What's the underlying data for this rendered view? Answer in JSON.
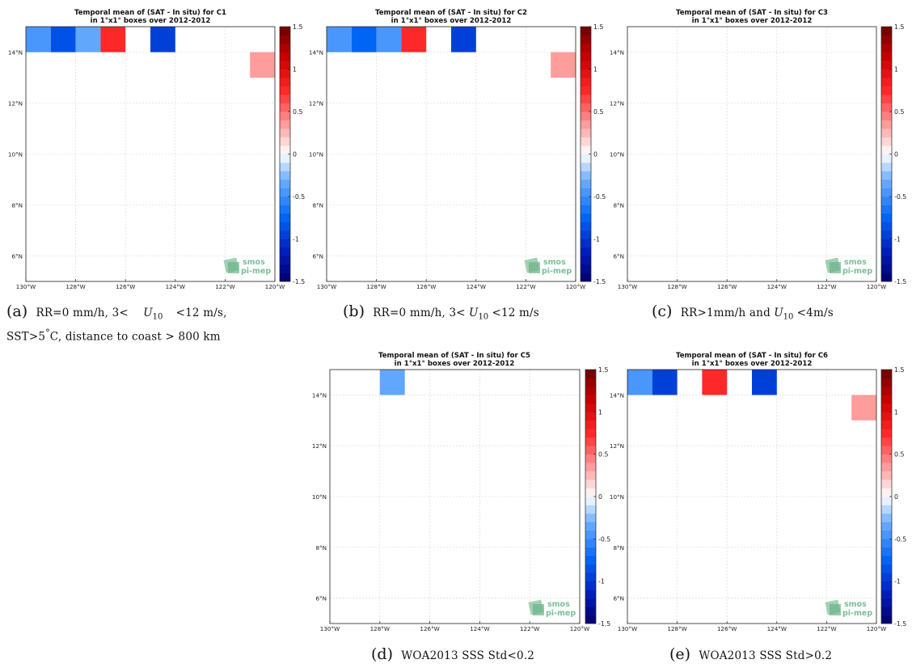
{
  "panels": [
    {
      "title_line1": "Temporal mean of (SAT - In situ) for C1",
      "title_line2": "in 1°x1° boxes over 2012-2012",
      "cells": [
        {
          "lon": -130,
          "lat": 14,
          "value": -0.5
        },
        {
          "lon": -129,
          "lat": 14,
          "value": -0.85
        },
        {
          "lon": -128,
          "lat": 14,
          "value": -0.4
        },
        {
          "lon": -127,
          "lat": 14,
          "value": 0.75
        },
        {
          "lon": -125,
          "lat": 14,
          "value": -0.9
        },
        {
          "lon": -121,
          "lat": 13,
          "value": 0.3
        }
      ],
      "watermark_line1": "smos",
      "watermark_line2": "pi-mep"
    },
    {
      "title_line1": "Temporal mean of (SAT - In situ) for C2",
      "title_line2": "in 1°x1° boxes over 2012-2012",
      "cells": [
        {
          "lon": -130,
          "lat": 14,
          "value": -0.5
        },
        {
          "lon": -129,
          "lat": 14,
          "value": -0.75
        },
        {
          "lon": -128,
          "lat": 14,
          "value": -0.5
        },
        {
          "lon": -127,
          "lat": 14,
          "value": 0.75
        },
        {
          "lon": -125,
          "lat": 14,
          "value": -0.9
        },
        {
          "lon": -121,
          "lat": 13,
          "value": 0.3
        }
      ],
      "watermark_line1": "smos",
      "watermark_line2": "pi-mep"
    },
    {
      "title_line1": "Temporal mean of (SAT - In situ) for C3",
      "title_line2": "in 1°x1° boxes over 2012-2012",
      "cells": [],
      "watermark_line1": "smos",
      "watermark_line2": "pi-mep"
    },
    {
      "title_line1": "Temporal mean of (SAT - In situ) for C5",
      "title_line2": "in 1°x1° boxes over 2012-2012",
      "cells": [
        {
          "lon": -128,
          "lat": 14,
          "value": -0.4
        }
      ],
      "watermark_line1": "smos",
      "watermark_line2": "pi-mep"
    },
    {
      "title_line1": "Temporal mean of (SAT - In situ) for C6",
      "title_line2": "in 1°x1° boxes over 2012-2012",
      "cells": [
        {
          "lon": -130,
          "lat": 14,
          "value": -0.5
        },
        {
          "lon": -129,
          "lat": 14,
          "value": -0.9
        },
        {
          "lon": -127,
          "lat": 14,
          "value": 0.75
        },
        {
          "lon": -125,
          "lat": 14,
          "value": -0.9
        },
        {
          "lon": -121,
          "lat": 13,
          "value": 0.3
        }
      ],
      "watermark_line1": "smos",
      "watermark_line2": "pi-mep"
    }
  ],
  "captions": {
    "a": {
      "label": "(a)",
      "line1_pre": "RR=0 mm/h, 3<",
      "line1_var": "U",
      "line1_sub": "10",
      "line1_post": "<12 m/s,",
      "line2_pre": "SST>5",
      "line2_deg": "°",
      "line2_post": "C, distance to coast > 800 km"
    },
    "b": {
      "label": "(b)",
      "pre": "RR=0 mm/h, 3<",
      "var": "U",
      "sub": "10",
      "post": "<12 m/s"
    },
    "c": {
      "label": "(c)",
      "pre": "RR>1mm/h and",
      "var": "U",
      "sub": "10",
      "post": "<4m/s"
    },
    "d": {
      "label": "(d)",
      "text": "WOA2013 SSS Std<0.2"
    },
    "e": {
      "label": "(e)",
      "text": "WOA2013 SSS Std>0.2"
    }
  },
  "chart_data": {
    "type": "heatmap",
    "x_ticks": [
      "130°W",
      "128°W",
      "126°W",
      "124°W",
      "122°W",
      "120°W"
    ],
    "y_ticks": [
      "6°N",
      "8°N",
      "10°N",
      "12°N",
      "14°N"
    ],
    "xlim": [
      -130,
      -120
    ],
    "ylim": [
      5,
      15
    ],
    "colorbar_ticks": [
      "-1.5",
      "-1",
      "-0.5",
      "0",
      "0.5",
      "1",
      "1.5"
    ],
    "colorbar_range": [
      -1.5,
      1.5
    ],
    "colorbar_levels": 30,
    "grid": true
  }
}
